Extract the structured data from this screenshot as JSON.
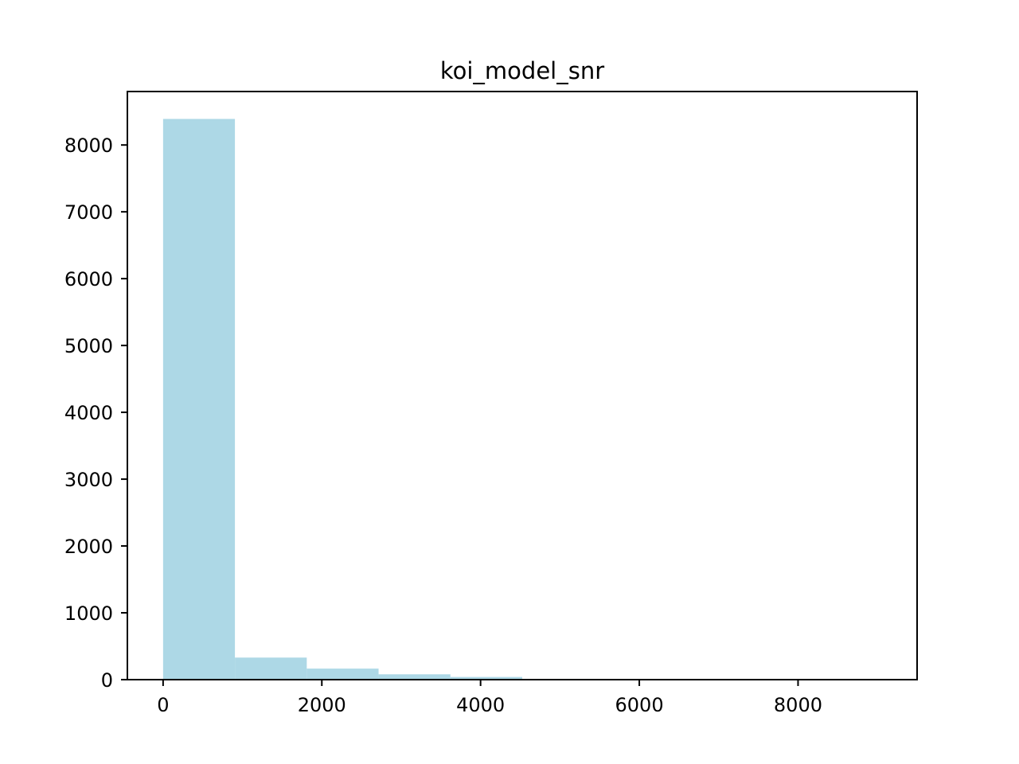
{
  "chart_data": {
    "type": "bar",
    "title": "koi_model_snr",
    "xlabel": "",
    "ylabel": "",
    "xlim": [
      -450,
      9500
    ],
    "ylim": [
      0,
      8800
    ],
    "grid": false,
    "bar_color": "#add8e6",
    "bins": [
      {
        "x0": 0,
        "x1": 905,
        "value": 8390
      },
      {
        "x0": 905,
        "x1": 1810,
        "value": 330
      },
      {
        "x0": 1810,
        "x1": 2715,
        "value": 165
      },
      {
        "x0": 2715,
        "x1": 3620,
        "value": 80
      },
      {
        "x0": 3620,
        "x1": 4525,
        "value": 40
      },
      {
        "x0": 4525,
        "x1": 5430,
        "value": 12
      },
      {
        "x0": 5430,
        "x1": 6335,
        "value": 8
      },
      {
        "x0": 6335,
        "x1": 7240,
        "value": 2
      },
      {
        "x0": 7240,
        "x1": 8145,
        "value": 1
      },
      {
        "x0": 8145,
        "x1": 9050,
        "value": 1
      }
    ],
    "x_ticks": [
      {
        "value": 0,
        "label": "0"
      },
      {
        "value": 2000,
        "label": "2000"
      },
      {
        "value": 4000,
        "label": "4000"
      },
      {
        "value": 6000,
        "label": "6000"
      },
      {
        "value": 8000,
        "label": "8000"
      }
    ],
    "y_ticks": [
      {
        "value": 0,
        "label": "0"
      },
      {
        "value": 1000,
        "label": "1000"
      },
      {
        "value": 2000,
        "label": "2000"
      },
      {
        "value": 3000,
        "label": "3000"
      },
      {
        "value": 4000,
        "label": "4000"
      },
      {
        "value": 5000,
        "label": "5000"
      },
      {
        "value": 6000,
        "label": "6000"
      },
      {
        "value": 7000,
        "label": "7000"
      },
      {
        "value": 8000,
        "label": "8000"
      }
    ]
  }
}
